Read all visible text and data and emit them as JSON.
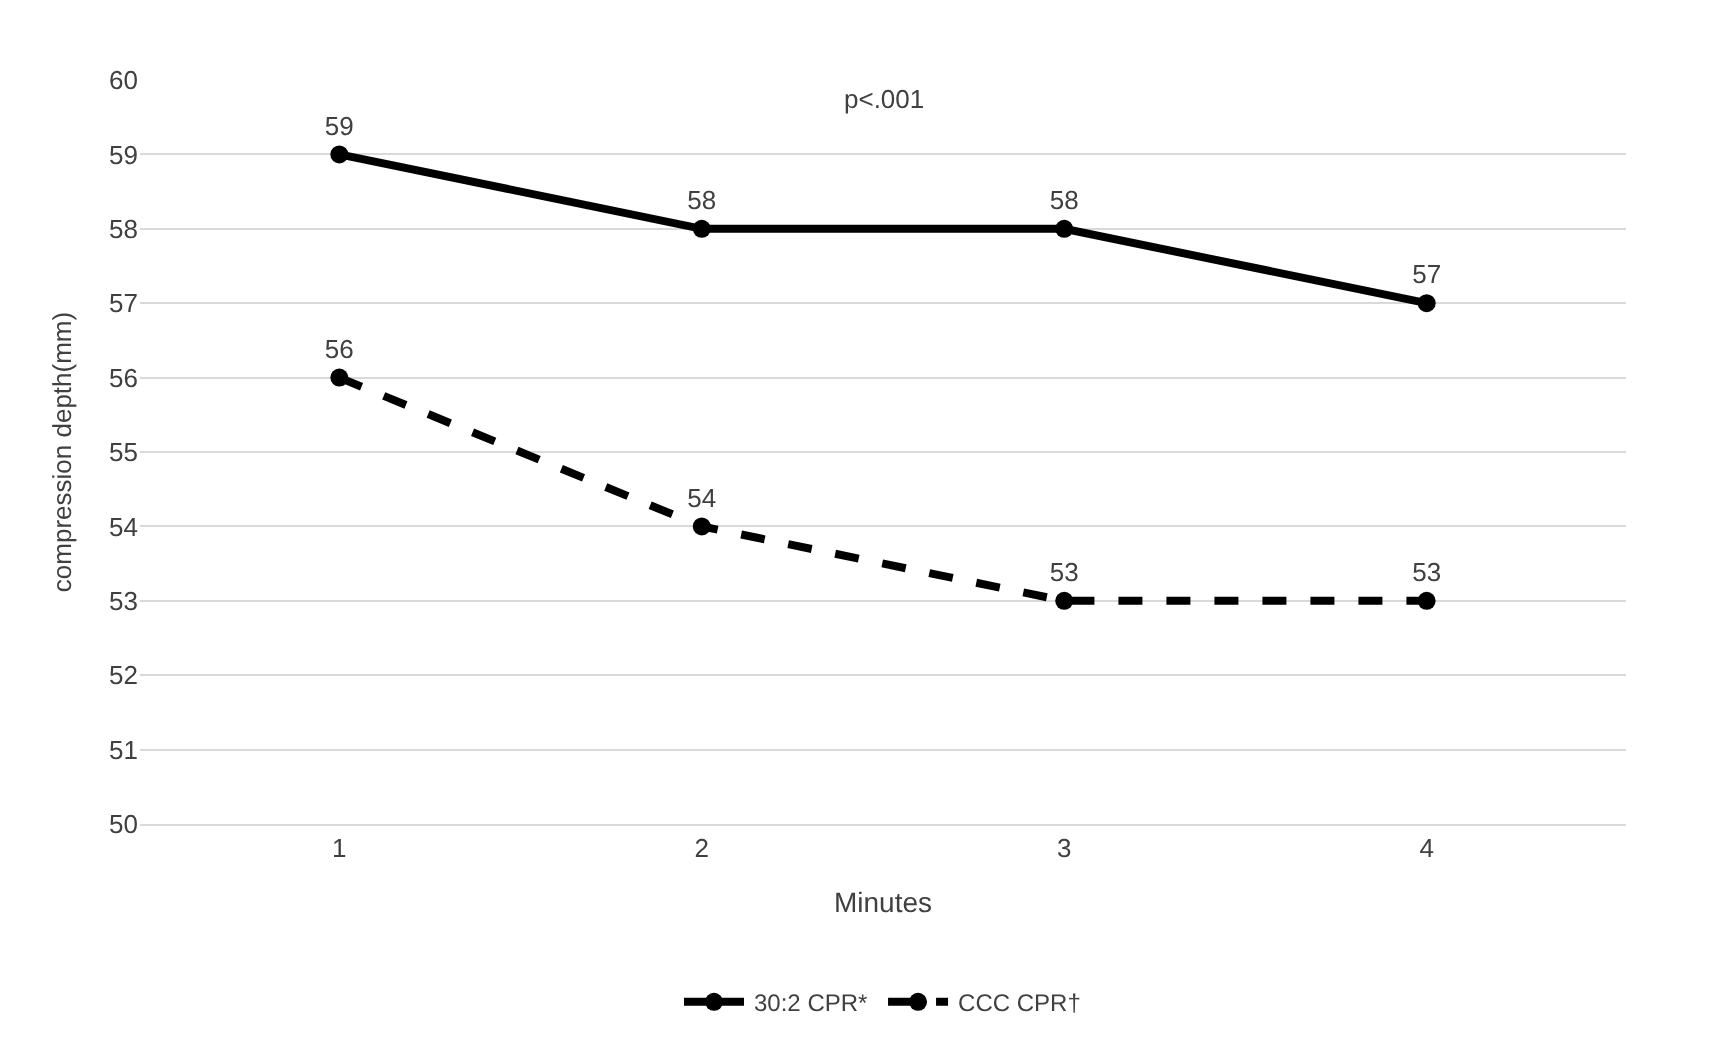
{
  "chart_data": {
    "type": "line",
    "categories": [
      "1",
      "2",
      "3",
      "4"
    ],
    "series": [
      {
        "name": "30:2 CPR*",
        "color": "#000000",
        "values": [
          59,
          58,
          58,
          57
        ],
        "line_style": "solid"
      },
      {
        "name": "CCC CPR†",
        "color": "#000000",
        "values": [
          56,
          54,
          53,
          53
        ],
        "line_style": "dashed"
      }
    ],
    "xlabel": "Minutes",
    "ylabel": "compression depth(mm)",
    "ylim": [
      50,
      60
    ],
    "yticks": [
      50,
      51,
      52,
      53,
      54,
      55,
      56,
      57,
      58,
      59,
      60
    ],
    "grid": "y",
    "legend": "bottom",
    "marker": "circle",
    "data_labels": true,
    "annotations": [
      "p<.001"
    ]
  }
}
